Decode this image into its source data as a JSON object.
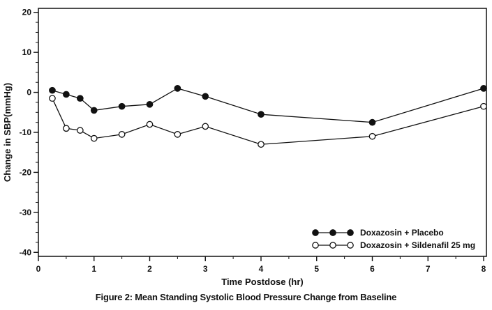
{
  "figure_caption": "Figure 2: Mean Standing Systolic Blood Pressure Change from Baseline",
  "chart_data": {
    "type": "line",
    "title": "",
    "xlabel": "Time Postdose (hr)",
    "ylabel": "Change in SBP(mmHg)",
    "xlim": [
      0,
      8
    ],
    "ylim": [
      -40,
      20
    ],
    "x_ticks": [
      0,
      1,
      2,
      3,
      4,
      5,
      6,
      7,
      8
    ],
    "y_ticks": [
      20,
      10,
      0,
      -10,
      -20,
      -30,
      -40
    ],
    "x_minor_step": 0.5,
    "y_minor_step": 2.5,
    "grid": false,
    "legend_position": "bottom-right",
    "line_color": "#111111",
    "x": [
      0.25,
      0.5,
      0.75,
      1,
      1.5,
      2,
      2.5,
      3,
      4,
      6,
      8
    ],
    "series": [
      {
        "name": "Doxazosin + Placebo",
        "marker": "filled-circle",
        "values": [
          0.5,
          -0.5,
          -1.5,
          -4.5,
          -3.5,
          -3,
          1,
          -1,
          -5.5,
          -7.5,
          1
        ]
      },
      {
        "name": "Doxazosin + Sildenafil 25 mg",
        "marker": "open-circle",
        "values": [
          -1.5,
          -9,
          -9.5,
          -11.5,
          -10.5,
          -8,
          -10.5,
          -8.5,
          -13,
          -11,
          -3.5
        ]
      }
    ]
  }
}
